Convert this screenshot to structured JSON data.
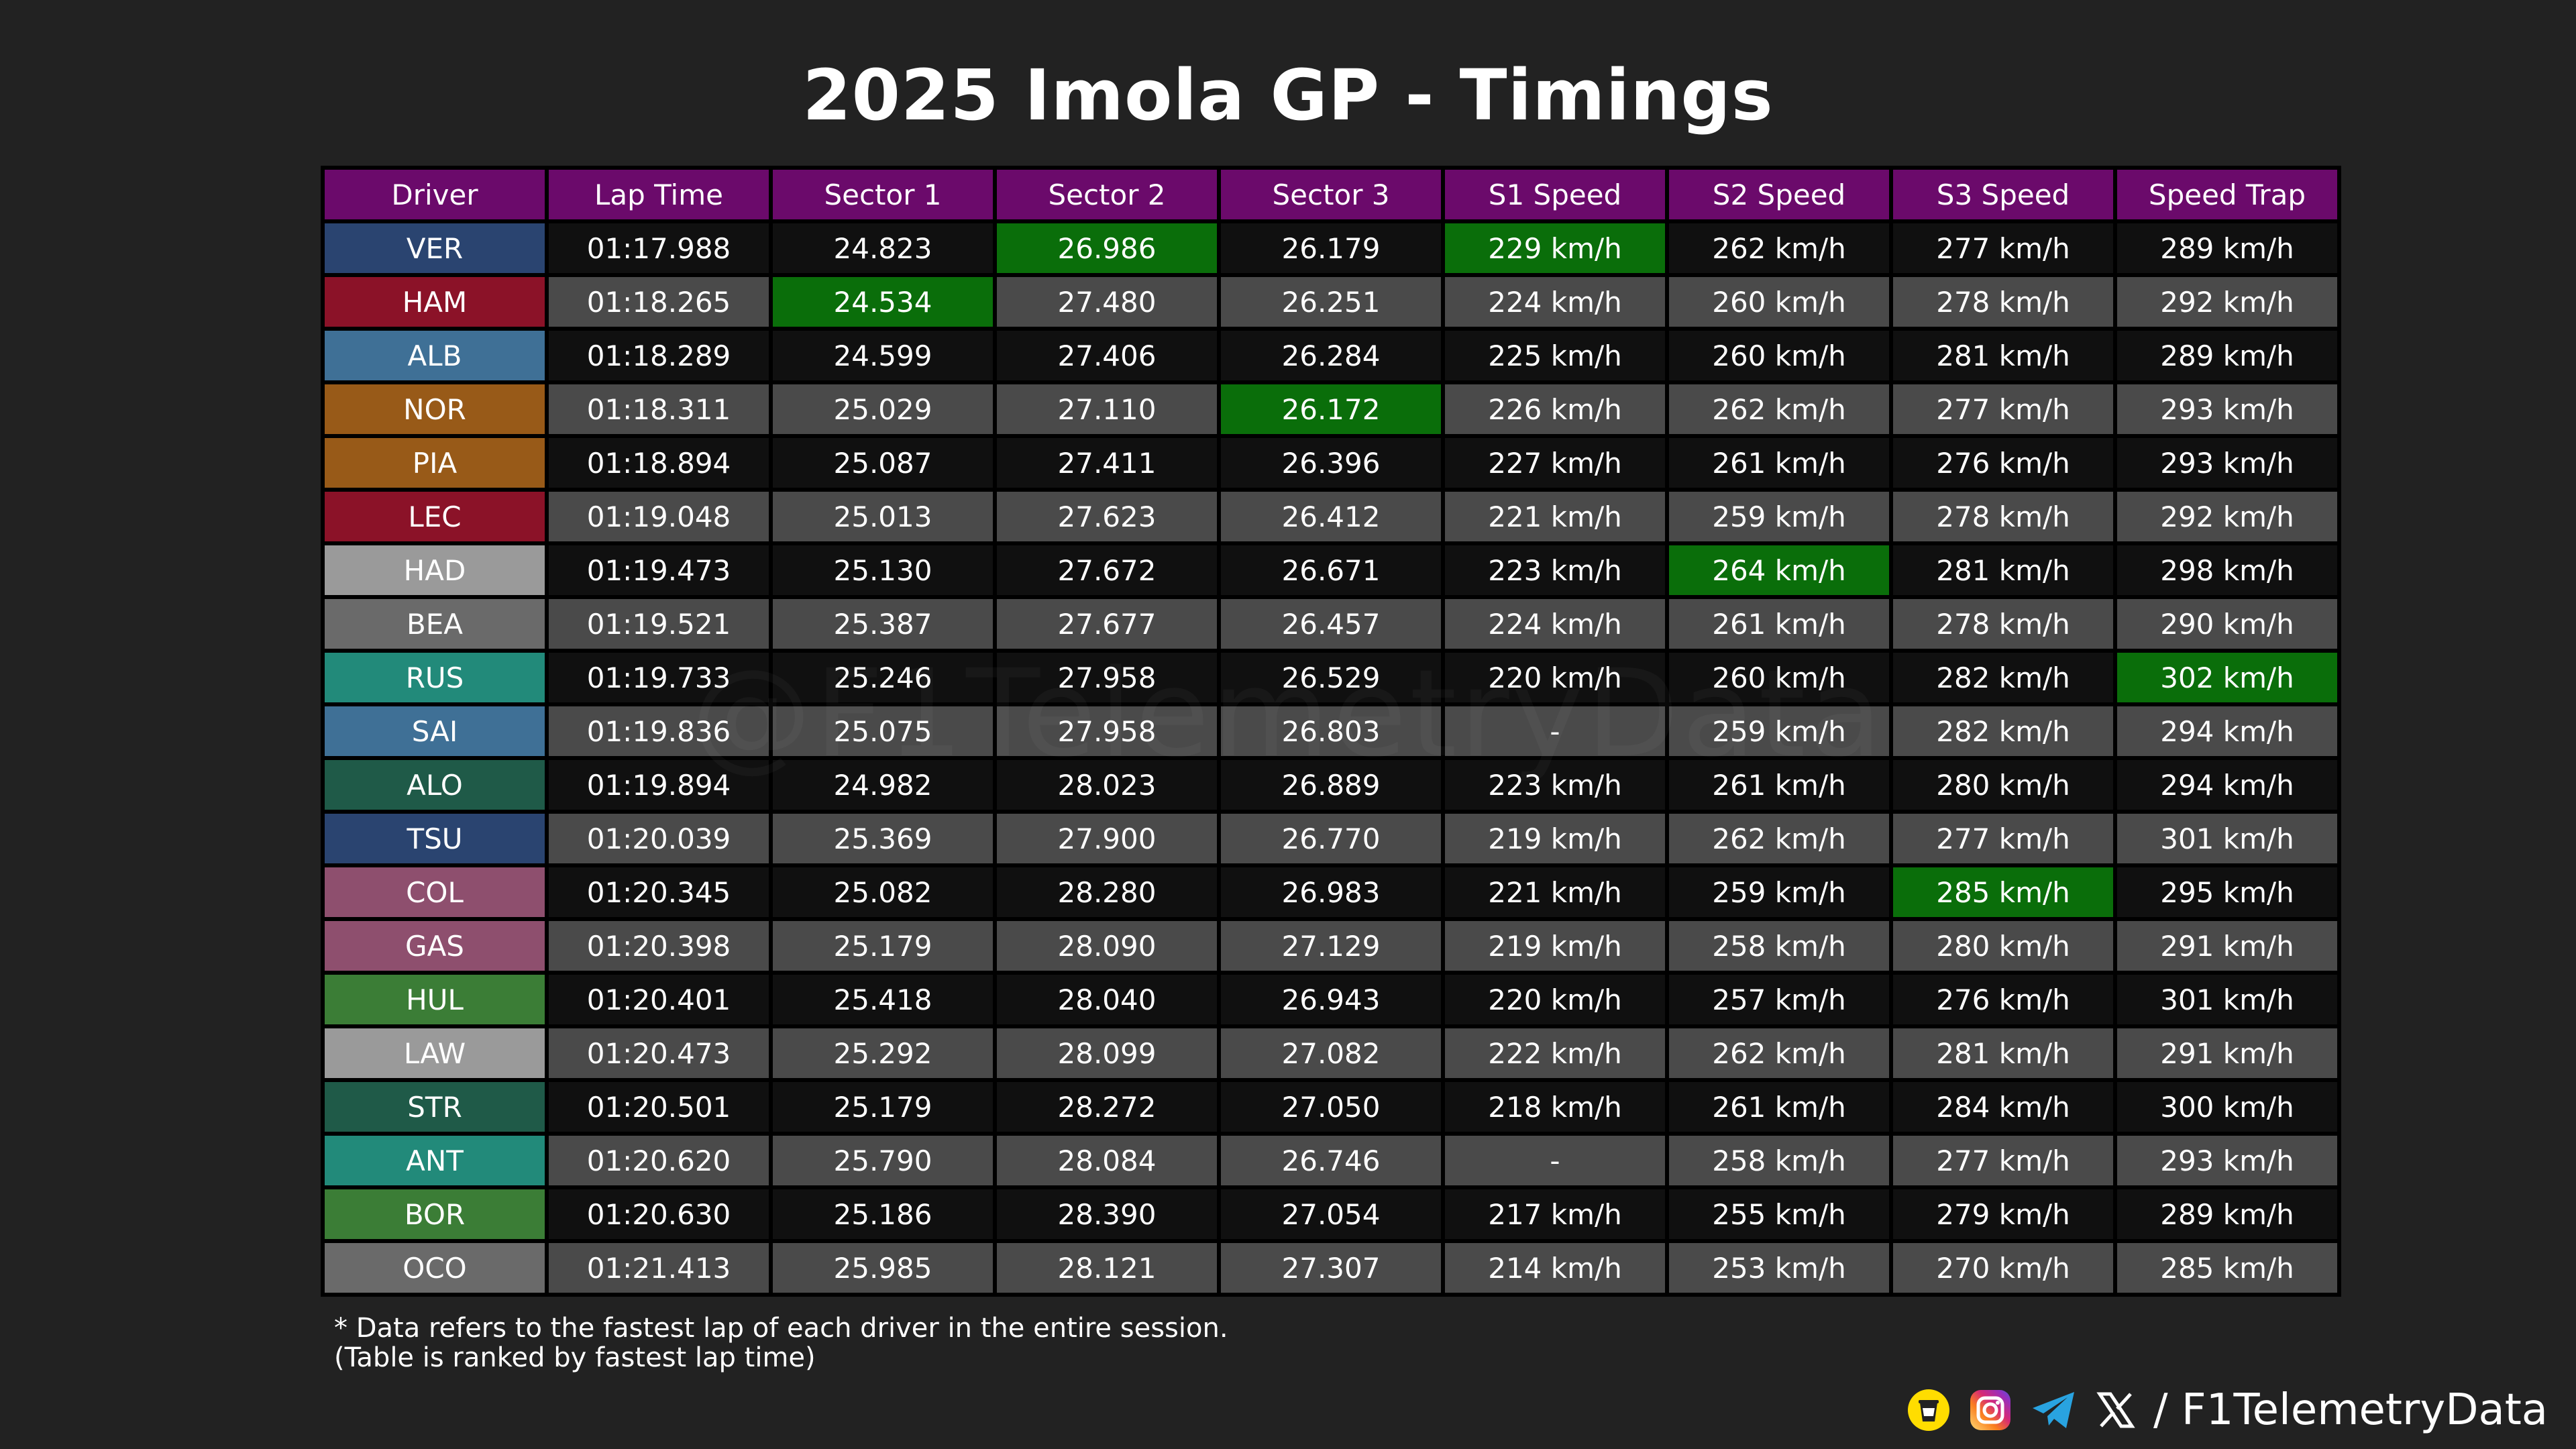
{
  "title": "2025 Imola GP - Timings",
  "watermark": "@F1TelemetryData",
  "columns": [
    "Driver",
    "Lap Time",
    "Sector 1",
    "Sector 2",
    "Sector 3",
    "S1 Speed",
    "S2 Speed",
    "S3 Speed",
    "Speed Trap"
  ],
  "colors": {
    "header": "#6b0a6b",
    "fastest": "#0a6e0a",
    "row_dark": "#101010",
    "row_light": "#4a4a4a",
    "background": "#222222"
  },
  "chart_data": {
    "type": "table",
    "rows": [
      {
        "driver": "VER",
        "color": "#2a4470",
        "lap": "01:17.988",
        "s1": "24.823",
        "s2": "26.986",
        "s3": "26.179",
        "s1s": "229 km/h",
        "s2s": "262 km/h",
        "s3s": "277 km/h",
        "trap": "289 km/h",
        "fastest": [
          "s2",
          "s1s"
        ]
      },
      {
        "driver": "HAM",
        "color": "#8b1228",
        "lap": "01:18.265",
        "s1": "24.534",
        "s2": "27.480",
        "s3": "26.251",
        "s1s": "224 km/h",
        "s2s": "260 km/h",
        "s3s": "278 km/h",
        "trap": "292 km/h",
        "fastest": [
          "s1"
        ]
      },
      {
        "driver": "ALB",
        "color": "#3f7096",
        "lap": "01:18.289",
        "s1": "24.599",
        "s2": "27.406",
        "s3": "26.284",
        "s1s": "225 km/h",
        "s2s": "260 km/h",
        "s3s": "281 km/h",
        "trap": "289 km/h",
        "fastest": []
      },
      {
        "driver": "NOR",
        "color": "#985a18",
        "lap": "01:18.311",
        "s1": "25.029",
        "s2": "27.110",
        "s3": "26.172",
        "s1s": "226 km/h",
        "s2s": "262 km/h",
        "s3s": "277 km/h",
        "trap": "293 km/h",
        "fastest": [
          "s3"
        ]
      },
      {
        "driver": "PIA",
        "color": "#985a18",
        "lap": "01:18.894",
        "s1": "25.087",
        "s2": "27.411",
        "s3": "26.396",
        "s1s": "227 km/h",
        "s2s": "261 km/h",
        "s3s": "276 km/h",
        "trap": "293 km/h",
        "fastest": []
      },
      {
        "driver": "LEC",
        "color": "#8b1228",
        "lap": "01:19.048",
        "s1": "25.013",
        "s2": "27.623",
        "s3": "26.412",
        "s1s": "221 km/h",
        "s2s": "259 km/h",
        "s3s": "278 km/h",
        "trap": "292 km/h",
        "fastest": []
      },
      {
        "driver": "HAD",
        "color": "#9a9a9a",
        "lap": "01:19.473",
        "s1": "25.130",
        "s2": "27.672",
        "s3": "26.671",
        "s1s": "223 km/h",
        "s2s": "264 km/h",
        "s3s": "281 km/h",
        "trap": "298 km/h",
        "fastest": [
          "s2s"
        ]
      },
      {
        "driver": "BEA",
        "color": "#6a6a6a",
        "lap": "01:19.521",
        "s1": "25.387",
        "s2": "27.677",
        "s3": "26.457",
        "s1s": "224 km/h",
        "s2s": "261 km/h",
        "s3s": "278 km/h",
        "trap": "290 km/h",
        "fastest": []
      },
      {
        "driver": "RUS",
        "color": "#228a7a",
        "lap": "01:19.733",
        "s1": "25.246",
        "s2": "27.958",
        "s3": "26.529",
        "s1s": "220 km/h",
        "s2s": "260 km/h",
        "s3s": "282 km/h",
        "trap": "302 km/h",
        "fastest": [
          "trap"
        ]
      },
      {
        "driver": "SAI",
        "color": "#3f7096",
        "lap": "01:19.836",
        "s1": "25.075",
        "s2": "27.958",
        "s3": "26.803",
        "s1s": "-",
        "s2s": "259 km/h",
        "s3s": "282 km/h",
        "trap": "294 km/h",
        "fastest": []
      },
      {
        "driver": "ALO",
        "color": "#1f5a48",
        "lap": "01:19.894",
        "s1": "24.982",
        "s2": "28.023",
        "s3": "26.889",
        "s1s": "223 km/h",
        "s2s": "261 km/h",
        "s3s": "280 km/h",
        "trap": "294 km/h",
        "fastest": []
      },
      {
        "driver": "TSU",
        "color": "#2a4470",
        "lap": "01:20.039",
        "s1": "25.369",
        "s2": "27.900",
        "s3": "26.770",
        "s1s": "219 km/h",
        "s2s": "262 km/h",
        "s3s": "277 km/h",
        "trap": "301 km/h",
        "fastest": []
      },
      {
        "driver": "COL",
        "color": "#8e4f6e",
        "lap": "01:20.345",
        "s1": "25.082",
        "s2": "28.280",
        "s3": "26.983",
        "s1s": "221 km/h",
        "s2s": "259 km/h",
        "s3s": "285 km/h",
        "trap": "295 km/h",
        "fastest": [
          "s3s"
        ]
      },
      {
        "driver": "GAS",
        "color": "#8e4f6e",
        "lap": "01:20.398",
        "s1": "25.179",
        "s2": "28.090",
        "s3": "27.129",
        "s1s": "219 km/h",
        "s2s": "258 km/h",
        "s3s": "280 km/h",
        "trap": "291 km/h",
        "fastest": []
      },
      {
        "driver": "HUL",
        "color": "#3b7d36",
        "lap": "01:20.401",
        "s1": "25.418",
        "s2": "28.040",
        "s3": "26.943",
        "s1s": "220 km/h",
        "s2s": "257 km/h",
        "s3s": "276 km/h",
        "trap": "301 km/h",
        "fastest": []
      },
      {
        "driver": "LAW",
        "color": "#9a9a9a",
        "lap": "01:20.473",
        "s1": "25.292",
        "s2": "28.099",
        "s3": "27.082",
        "s1s": "222 km/h",
        "s2s": "262 km/h",
        "s3s": "281 km/h",
        "trap": "291 km/h",
        "fastest": []
      },
      {
        "driver": "STR",
        "color": "#1f5a48",
        "lap": "01:20.501",
        "s1": "25.179",
        "s2": "28.272",
        "s3": "27.050",
        "s1s": "218 km/h",
        "s2s": "261 km/h",
        "s3s": "284 km/h",
        "trap": "300 km/h",
        "fastest": []
      },
      {
        "driver": "ANT",
        "color": "#228a7a",
        "lap": "01:20.620",
        "s1": "25.790",
        "s2": "28.084",
        "s3": "26.746",
        "s1s": "-",
        "s2s": "258 km/h",
        "s3s": "277 km/h",
        "trap": "293 km/h",
        "fastest": []
      },
      {
        "driver": "BOR",
        "color": "#3b7d36",
        "lap": "01:20.630",
        "s1": "25.186",
        "s2": "28.390",
        "s3": "27.054",
        "s1s": "217 km/h",
        "s2s": "255 km/h",
        "s3s": "279 km/h",
        "trap": "289 km/h",
        "fastest": []
      },
      {
        "driver": "OCO",
        "color": "#6a6a6a",
        "lap": "01:21.413",
        "s1": "25.985",
        "s2": "28.121",
        "s3": "27.307",
        "s1s": "214 km/h",
        "s2s": "253 km/h",
        "s3s": "270 km/h",
        "trap": "285 km/h",
        "fastest": []
      }
    ]
  },
  "footnote": {
    "line1": "* Data refers to the fastest lap of each driver in the entire session.",
    "line2": "(Table is ranked by fastest lap time)"
  },
  "branding": {
    "icons": [
      "buymeacoffee-icon",
      "instagram-icon",
      "telegram-icon",
      "x-icon"
    ],
    "handle": "/ F1TelemetryData"
  }
}
